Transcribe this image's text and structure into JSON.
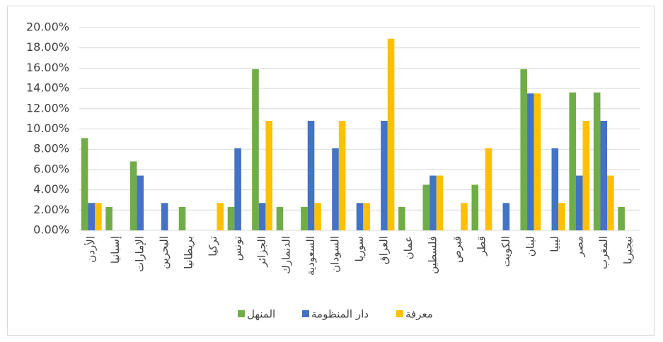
{
  "chart_data": {
    "type": "bar",
    "categories": [
      "الأردن",
      "إسبانيا",
      "الإمارات",
      "البحرين",
      "بريطانيا",
      "تركيا",
      "تونس",
      "الجزائر",
      "الدنمارك",
      "السعودية",
      "السودان",
      "سوريا",
      "العراق",
      "عمان",
      "فلسطين",
      "قبرص",
      "قطر",
      "الكويت",
      "لبنان",
      "ليبيا",
      "مصر",
      "المغرب",
      "نيجيريا"
    ],
    "series": [
      {
        "name": "المنهل",
        "color": "#70ad47",
        "values": [
          9.1,
          2.3,
          6.8,
          0,
          2.3,
          0,
          2.3,
          15.9,
          2.3,
          2.3,
          0,
          0,
          0,
          2.3,
          4.5,
          0,
          4.5,
          0,
          15.9,
          0,
          13.6,
          13.6,
          2.3
        ]
      },
      {
        "name": "دار المنظومة",
        "color": "#4472c4",
        "values": [
          2.7,
          0,
          5.4,
          2.7,
          0,
          0,
          8.1,
          2.7,
          0,
          10.8,
          8.1,
          2.7,
          10.8,
          0,
          5.4,
          0,
          0,
          2.7,
          13.5,
          8.1,
          5.4,
          10.8,
          0
        ]
      },
      {
        "name": "معرفة",
        "color": "#ffc000",
        "values": [
          2.7,
          0,
          0,
          0,
          0,
          2.7,
          0,
          10.8,
          0,
          2.7,
          10.8,
          2.7,
          18.9,
          0,
          5.4,
          2.7,
          8.1,
          0,
          13.5,
          2.7,
          10.8,
          5.4,
          0
        ]
      }
    ],
    "ylim": [
      0,
      20
    ],
    "yticks": [
      {
        "value": 0,
        "label": "0.00%"
      },
      {
        "value": 2,
        "label": "2.00%"
      },
      {
        "value": 4,
        "label": "4.00%"
      },
      {
        "value": 6,
        "label": "6.00%"
      },
      {
        "value": 8,
        "label": "8.00%"
      },
      {
        "value": 10,
        "label": "10.00%"
      },
      {
        "value": 12,
        "label": "12.00%"
      },
      {
        "value": 14,
        "label": "14.00%"
      },
      {
        "value": 16,
        "label": "16.00%"
      },
      {
        "value": 18,
        "label": "18.00%"
      },
      {
        "value": 20,
        "label": "20.00%"
      }
    ],
    "grid": true,
    "legend": "bottom"
  }
}
